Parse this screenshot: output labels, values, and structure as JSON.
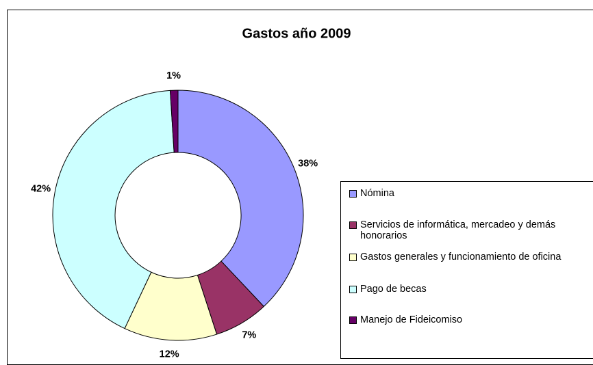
{
  "chart_data": {
    "type": "donut",
    "title": "Gastos año 2009",
    "categories": [
      "Nómina",
      "Servicios de informática, mercadeo y demás honorarios",
      "Gastos generales y funcionamiento de oficina",
      "Pago de becas",
      "Manejo de Fideicomiso"
    ],
    "values": [
      38,
      7,
      12,
      42,
      1
    ],
    "value_labels": [
      "38%",
      "7%",
      "12%",
      "42%",
      "1%"
    ],
    "colors": [
      "#9999ff",
      "#993366",
      "#ffffcc",
      "#ccffff",
      "#660066"
    ],
    "legend": "right"
  }
}
